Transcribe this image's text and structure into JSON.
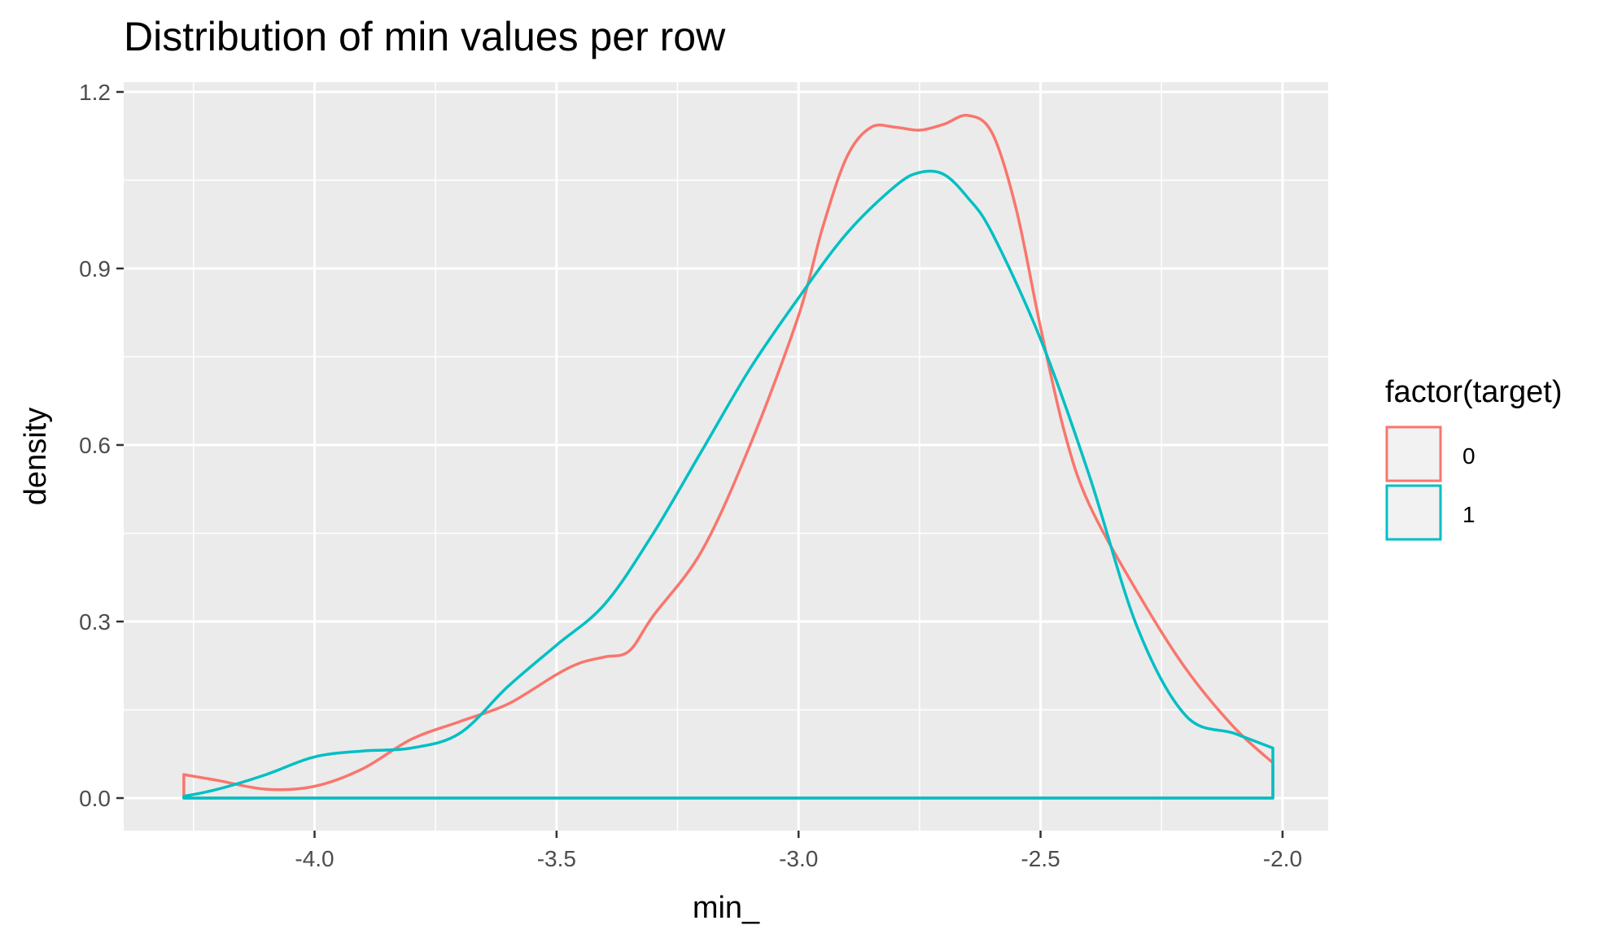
{
  "chart_data": {
    "type": "line",
    "title": "Distribution of min values per row",
    "xlabel": "min_",
    "ylabel": "density",
    "xlim": [
      -4.28,
      -2.02
    ],
    "ylim": [
      0,
      1.2
    ],
    "x_ticks": [
      -4.0,
      -3.5,
      -3.0,
      -2.5,
      -2.0
    ],
    "x_tick_labels": [
      "-4.0",
      "-3.5",
      "-3.0",
      "-2.5",
      "-2.0"
    ],
    "y_ticks": [
      0.0,
      0.3,
      0.6,
      0.9,
      1.2
    ],
    "y_tick_labels": [
      "0.0",
      "0.3",
      "0.6",
      "0.9",
      "1.2"
    ],
    "grid": true,
    "legend": {
      "title": "factor(target)",
      "placement": "right"
    },
    "series": [
      {
        "name": "0",
        "color": "#F8766D",
        "x": [
          -4.27,
          -4.2,
          -4.1,
          -4.0,
          -3.9,
          -3.8,
          -3.7,
          -3.6,
          -3.5,
          -3.45,
          -3.4,
          -3.35,
          -3.3,
          -3.2,
          -3.1,
          -3.0,
          -2.95,
          -2.9,
          -2.85,
          -2.8,
          -2.75,
          -2.7,
          -2.65,
          -2.6,
          -2.55,
          -2.5,
          -2.45,
          -2.4,
          -2.3,
          -2.2,
          -2.1,
          -2.02
        ],
        "values": [
          0.04,
          0.03,
          0.015,
          0.02,
          0.05,
          0.1,
          0.13,
          0.16,
          0.21,
          0.23,
          0.24,
          0.25,
          0.31,
          0.42,
          0.6,
          0.82,
          0.97,
          1.09,
          1.14,
          1.14,
          1.135,
          1.145,
          1.16,
          1.13,
          1.0,
          0.8,
          0.62,
          0.5,
          0.35,
          0.22,
          0.12,
          0.06
        ]
      },
      {
        "name": "1",
        "color": "#00BFC4",
        "x": [
          -4.27,
          -4.2,
          -4.1,
          -4.0,
          -3.9,
          -3.8,
          -3.7,
          -3.6,
          -3.5,
          -3.4,
          -3.3,
          -3.2,
          -3.1,
          -3.0,
          -2.9,
          -2.8,
          -2.75,
          -2.7,
          -2.65,
          -2.6,
          -2.5,
          -2.4,
          -2.3,
          -2.2,
          -2.1,
          -2.02
        ],
        "values": [
          0.003,
          0.015,
          0.04,
          0.07,
          0.08,
          0.085,
          0.11,
          0.19,
          0.26,
          0.33,
          0.45,
          0.59,
          0.73,
          0.85,
          0.96,
          1.04,
          1.063,
          1.06,
          1.02,
          0.96,
          0.78,
          0.55,
          0.29,
          0.14,
          0.11,
          0.085
        ]
      }
    ]
  }
}
